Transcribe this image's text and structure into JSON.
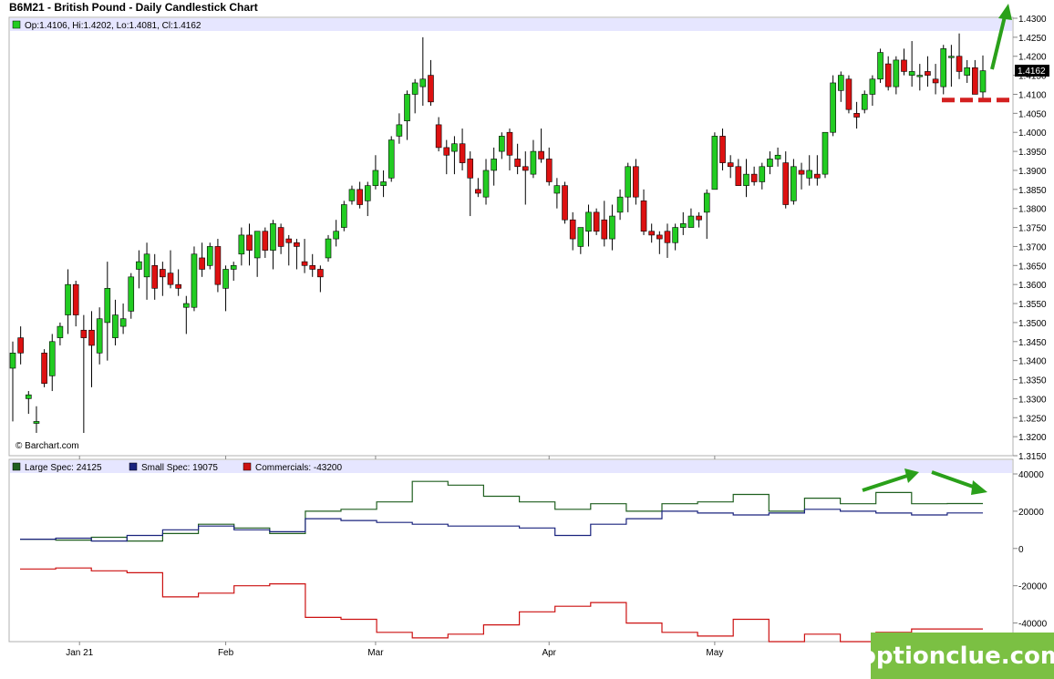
{
  "title": "B6M21 - British Pound - Daily Candlestick Chart",
  "ohlc_legend": "Op:1.4106, Hi:1.4202, Lo:1.4081, Cl:1.4162",
  "last_price_label": "1.4162",
  "watermark": "© Barchart.com",
  "brand": "optionclue.com",
  "x_labels": [
    "Jan 21",
    "Feb",
    "Mar",
    "Apr",
    "May"
  ],
  "colors": {
    "up": "#22cc22",
    "down": "#dd1111",
    "large": "#1f5f1f",
    "small": "#1a237e",
    "commercials": "#cc1111",
    "arrow": "#2aa01a",
    "support": "#d42020"
  },
  "chart_data": [
    {
      "type": "candlestick",
      "title": "B6M21 - British Pound - Daily Candlestick Chart",
      "ylim": [
        1.315,
        1.43
      ],
      "yticks": [
        "1.3150",
        "1.3200",
        "1.3250",
        "1.3300",
        "1.3350",
        "1.3400",
        "1.3450",
        "1.3500",
        "1.3550",
        "1.3600",
        "1.3650",
        "1.3700",
        "1.3750",
        "1.3800",
        "1.3850",
        "1.3900",
        "1.3950",
        "1.4000",
        "1.4050",
        "1.4100",
        "1.4150",
        "1.4200",
        "1.4250",
        "1.4300"
      ],
      "support_level": 1.4085,
      "candles": [
        {
          "o": 1.338,
          "h": 1.345,
          "l": 1.324,
          "c": 1.342
        },
        {
          "o": 1.346,
          "h": 1.349,
          "l": 1.339,
          "c": 1.342
        },
        {
          "o": 1.33,
          "h": 1.332,
          "l": 1.326,
          "c": 1.331
        },
        {
          "o": 1.3235,
          "h": 1.328,
          "l": 1.321,
          "c": 1.324
        },
        {
          "o": 1.342,
          "h": 1.343,
          "l": 1.333,
          "c": 1.334
        },
        {
          "o": 1.336,
          "h": 1.347,
          "l": 1.332,
          "c": 1.345
        },
        {
          "o": 1.346,
          "h": 1.35,
          "l": 1.344,
          "c": 1.349
        },
        {
          "o": 1.352,
          "h": 1.364,
          "l": 1.347,
          "c": 1.36
        },
        {
          "o": 1.36,
          "h": 1.361,
          "l": 1.349,
          "c": 1.352
        },
        {
          "o": 1.348,
          "h": 1.352,
          "l": 1.321,
          "c": 1.346
        },
        {
          "o": 1.348,
          "h": 1.353,
          "l": 1.333,
          "c": 1.344
        },
        {
          "o": 1.342,
          "h": 1.354,
          "l": 1.339,
          "c": 1.351
        },
        {
          "o": 1.35,
          "h": 1.366,
          "l": 1.34,
          "c": 1.359
        },
        {
          "o": 1.346,
          "h": 1.356,
          "l": 1.344,
          "c": 1.352
        },
        {
          "o": 1.349,
          "h": 1.355,
          "l": 1.347,
          "c": 1.351
        },
        {
          "o": 1.353,
          "h": 1.363,
          "l": 1.351,
          "c": 1.362
        },
        {
          "o": 1.364,
          "h": 1.369,
          "l": 1.359,
          "c": 1.366
        },
        {
          "o": 1.362,
          "h": 1.371,
          "l": 1.356,
          "c": 1.368
        },
        {
          "o": 1.365,
          "h": 1.368,
          "l": 1.356,
          "c": 1.359
        },
        {
          "o": 1.364,
          "h": 1.366,
          "l": 1.357,
          "c": 1.362
        },
        {
          "o": 1.363,
          "h": 1.369,
          "l": 1.359,
          "c": 1.36
        },
        {
          "o": 1.36,
          "h": 1.364,
          "l": 1.357,
          "c": 1.359
        },
        {
          "o": 1.354,
          "h": 1.357,
          "l": 1.347,
          "c": 1.355
        },
        {
          "o": 1.354,
          "h": 1.37,
          "l": 1.353,
          "c": 1.368
        },
        {
          "o": 1.367,
          "h": 1.371,
          "l": 1.362,
          "c": 1.364
        },
        {
          "o": 1.365,
          "h": 1.371,
          "l": 1.364,
          "c": 1.37
        },
        {
          "o": 1.37,
          "h": 1.372,
          "l": 1.358,
          "c": 1.36
        },
        {
          "o": 1.359,
          "h": 1.365,
          "l": 1.353,
          "c": 1.364
        },
        {
          "o": 1.364,
          "h": 1.366,
          "l": 1.361,
          "c": 1.365
        },
        {
          "o": 1.368,
          "h": 1.375,
          "l": 1.365,
          "c": 1.373
        },
        {
          "o": 1.373,
          "h": 1.376,
          "l": 1.365,
          "c": 1.369
        },
        {
          "o": 1.367,
          "h": 1.374,
          "l": 1.362,
          "c": 1.374
        },
        {
          "o": 1.374,
          "h": 1.375,
          "l": 1.367,
          "c": 1.369
        },
        {
          "o": 1.369,
          "h": 1.377,
          "l": 1.364,
          "c": 1.376
        },
        {
          "o": 1.375,
          "h": 1.376,
          "l": 1.368,
          "c": 1.37
        },
        {
          "o": 1.372,
          "h": 1.373,
          "l": 1.365,
          "c": 1.371
        },
        {
          "o": 1.371,
          "h": 1.372,
          "l": 1.364,
          "c": 1.37
        },
        {
          "o": 1.366,
          "h": 1.372,
          "l": 1.363,
          "c": 1.365
        },
        {
          "o": 1.365,
          "h": 1.368,
          "l": 1.362,
          "c": 1.364
        },
        {
          "o": 1.364,
          "h": 1.365,
          "l": 1.358,
          "c": 1.362
        },
        {
          "o": 1.367,
          "h": 1.373,
          "l": 1.366,
          "c": 1.372
        },
        {
          "o": 1.372,
          "h": 1.377,
          "l": 1.37,
          "c": 1.374
        },
        {
          "o": 1.375,
          "h": 1.382,
          "l": 1.374,
          "c": 1.381
        },
        {
          "o": 1.382,
          "h": 1.386,
          "l": 1.381,
          "c": 1.385
        },
        {
          "o": 1.385,
          "h": 1.387,
          "l": 1.38,
          "c": 1.381
        },
        {
          "o": 1.382,
          "h": 1.387,
          "l": 1.378,
          "c": 1.386
        },
        {
          "o": 1.386,
          "h": 1.394,
          "l": 1.385,
          "c": 1.39
        },
        {
          "o": 1.386,
          "h": 1.39,
          "l": 1.383,
          "c": 1.387
        },
        {
          "o": 1.388,
          "h": 1.399,
          "l": 1.387,
          "c": 1.398
        },
        {
          "o": 1.399,
          "h": 1.405,
          "l": 1.397,
          "c": 1.402
        },
        {
          "o": 1.403,
          "h": 1.411,
          "l": 1.398,
          "c": 1.41
        },
        {
          "o": 1.41,
          "h": 1.414,
          "l": 1.405,
          "c": 1.413
        },
        {
          "o": 1.412,
          "h": 1.425,
          "l": 1.407,
          "c": 1.414
        },
        {
          "o": 1.415,
          "h": 1.419,
          "l": 1.407,
          "c": 1.408
        },
        {
          "o": 1.402,
          "h": 1.404,
          "l": 1.395,
          "c": 1.396
        },
        {
          "o": 1.396,
          "h": 1.398,
          "l": 1.389,
          "c": 1.394
        },
        {
          "o": 1.395,
          "h": 1.399,
          "l": 1.389,
          "c": 1.397
        },
        {
          "o": 1.397,
          "h": 1.401,
          "l": 1.39,
          "c": 1.392
        },
        {
          "o": 1.393,
          "h": 1.395,
          "l": 1.378,
          "c": 1.388
        },
        {
          "o": 1.385,
          "h": 1.388,
          "l": 1.383,
          "c": 1.384
        },
        {
          "o": 1.383,
          "h": 1.393,
          "l": 1.381,
          "c": 1.39
        },
        {
          "o": 1.39,
          "h": 1.396,
          "l": 1.386,
          "c": 1.393
        },
        {
          "o": 1.395,
          "h": 1.4,
          "l": 1.393,
          "c": 1.399
        },
        {
          "o": 1.4,
          "h": 1.401,
          "l": 1.39,
          "c": 1.394
        },
        {
          "o": 1.393,
          "h": 1.397,
          "l": 1.389,
          "c": 1.391
        },
        {
          "o": 1.391,
          "h": 1.395,
          "l": 1.381,
          "c": 1.39
        },
        {
          "o": 1.389,
          "h": 1.398,
          "l": 1.388,
          "c": 1.395
        },
        {
          "o": 1.395,
          "h": 1.401,
          "l": 1.392,
          "c": 1.393
        },
        {
          "o": 1.393,
          "h": 1.396,
          "l": 1.386,
          "c": 1.387
        },
        {
          "o": 1.384,
          "h": 1.388,
          "l": 1.38,
          "c": 1.386
        },
        {
          "o": 1.386,
          "h": 1.387,
          "l": 1.376,
          "c": 1.377
        },
        {
          "o": 1.377,
          "h": 1.379,
          "l": 1.369,
          "c": 1.372
        },
        {
          "o": 1.37,
          "h": 1.375,
          "l": 1.368,
          "c": 1.375
        },
        {
          "o": 1.374,
          "h": 1.381,
          "l": 1.37,
          "c": 1.379
        },
        {
          "o": 1.379,
          "h": 1.38,
          "l": 1.373,
          "c": 1.374
        },
        {
          "o": 1.377,
          "h": 1.382,
          "l": 1.37,
          "c": 1.372
        },
        {
          "o": 1.372,
          "h": 1.381,
          "l": 1.369,
          "c": 1.378
        },
        {
          "o": 1.379,
          "h": 1.385,
          "l": 1.377,
          "c": 1.383
        },
        {
          "o": 1.383,
          "h": 1.392,
          "l": 1.379,
          "c": 1.391
        },
        {
          "o": 1.391,
          "h": 1.393,
          "l": 1.381,
          "c": 1.383
        },
        {
          "o": 1.382,
          "h": 1.385,
          "l": 1.373,
          "c": 1.374
        },
        {
          "o": 1.374,
          "h": 1.376,
          "l": 1.371,
          "c": 1.373
        },
        {
          "o": 1.373,
          "h": 1.374,
          "l": 1.368,
          "c": 1.372
        },
        {
          "o": 1.374,
          "h": 1.376,
          "l": 1.367,
          "c": 1.371
        },
        {
          "o": 1.371,
          "h": 1.376,
          "l": 1.369,
          "c": 1.375
        },
        {
          "o": 1.375,
          "h": 1.379,
          "l": 1.373,
          "c": 1.376
        },
        {
          "o": 1.375,
          "h": 1.38,
          "l": 1.375,
          "c": 1.378
        },
        {
          "o": 1.378,
          "h": 1.379,
          "l": 1.375,
          "c": 1.377
        },
        {
          "o": 1.379,
          "h": 1.385,
          "l": 1.372,
          "c": 1.384
        },
        {
          "o": 1.385,
          "h": 1.4,
          "l": 1.385,
          "c": 1.399
        },
        {
          "o": 1.399,
          "h": 1.401,
          "l": 1.39,
          "c": 1.392
        },
        {
          "o": 1.392,
          "h": 1.394,
          "l": 1.388,
          "c": 1.391
        },
        {
          "o": 1.391,
          "h": 1.393,
          "l": 1.386,
          "c": 1.386
        },
        {
          "o": 1.386,
          "h": 1.393,
          "l": 1.383,
          "c": 1.389
        },
        {
          "o": 1.389,
          "h": 1.391,
          "l": 1.386,
          "c": 1.387
        },
        {
          "o": 1.387,
          "h": 1.392,
          "l": 1.385,
          "c": 1.391
        },
        {
          "o": 1.391,
          "h": 1.395,
          "l": 1.389,
          "c": 1.393
        },
        {
          "o": 1.393,
          "h": 1.396,
          "l": 1.391,
          "c": 1.394
        },
        {
          "o": 1.392,
          "h": 1.395,
          "l": 1.38,
          "c": 1.381
        },
        {
          "o": 1.382,
          "h": 1.393,
          "l": 1.381,
          "c": 1.391
        },
        {
          "o": 1.39,
          "h": 1.392,
          "l": 1.385,
          "c": 1.389
        },
        {
          "o": 1.388,
          "h": 1.394,
          "l": 1.386,
          "c": 1.39
        },
        {
          "o": 1.389,
          "h": 1.394,
          "l": 1.386,
          "c": 1.388
        },
        {
          "o": 1.389,
          "h": 1.4,
          "l": 1.388,
          "c": 1.4
        },
        {
          "o": 1.4,
          "h": 1.415,
          "l": 1.399,
          "c": 1.413
        },
        {
          "o": 1.411,
          "h": 1.416,
          "l": 1.408,
          "c": 1.415
        },
        {
          "o": 1.414,
          "h": 1.415,
          "l": 1.405,
          "c": 1.406
        },
        {
          "o": 1.405,
          "h": 1.408,
          "l": 1.401,
          "c": 1.404
        },
        {
          "o": 1.406,
          "h": 1.411,
          "l": 1.405,
          "c": 1.41
        },
        {
          "o": 1.41,
          "h": 1.415,
          "l": 1.407,
          "c": 1.414
        },
        {
          "o": 1.414,
          "h": 1.422,
          "l": 1.413,
          "c": 1.421
        },
        {
          "o": 1.418,
          "h": 1.42,
          "l": 1.411,
          "c": 1.412
        },
        {
          "o": 1.412,
          "h": 1.42,
          "l": 1.41,
          "c": 1.419
        },
        {
          "o": 1.419,
          "h": 1.422,
          "l": 1.415,
          "c": 1.416
        },
        {
          "o": 1.415,
          "h": 1.424,
          "l": 1.412,
          "c": 1.416
        },
        {
          "o": 1.415,
          "h": 1.418,
          "l": 1.411,
          "c": 1.415
        },
        {
          "o": 1.416,
          "h": 1.42,
          "l": 1.412,
          "c": 1.415
        },
        {
          "o": 1.414,
          "h": 1.418,
          "l": 1.41,
          "c": 1.413
        },
        {
          "o": 1.412,
          "h": 1.423,
          "l": 1.41,
          "c": 1.422
        },
        {
          "o": 1.42,
          "h": 1.423,
          "l": 1.412,
          "c": 1.42
        },
        {
          "o": 1.42,
          "h": 1.426,
          "l": 1.414,
          "c": 1.416
        },
        {
          "o": 1.415,
          "h": 1.419,
          "l": 1.413,
          "c": 1.417
        },
        {
          "o": 1.417,
          "h": 1.419,
          "l": 1.41,
          "c": 1.41
        },
        {
          "o": 1.4106,
          "h": 1.4202,
          "l": 1.4081,
          "c": 1.4162
        }
      ]
    },
    {
      "type": "line",
      "title": "COT",
      "ylim": [
        -50000,
        40000
      ],
      "yticks": [
        "40000",
        "20000",
        "0",
        "-20000",
        "-40000"
      ],
      "series": [
        {
          "name": "Large Spec: 24125",
          "values": [
            5000,
            4500,
            6000,
            4000,
            8000,
            13000,
            11000,
            8000,
            20000,
            21000,
            25000,
            36000,
            34000,
            28000,
            25000,
            21000,
            24000,
            20000,
            24000,
            25000,
            29000,
            20000,
            27000,
            24000,
            30000,
            24000,
            24125
          ]
        },
        {
          "name": "Small Spec: 19075",
          "values": [
            5000,
            5500,
            4000,
            7000,
            10000,
            12000,
            10000,
            9000,
            16000,
            15000,
            14000,
            13000,
            12000,
            12000,
            11000,
            7000,
            13000,
            16000,
            20000,
            19000,
            18000,
            19000,
            21000,
            20000,
            19000,
            18000,
            19075
          ]
        },
        {
          "name": "Commercials: -43200",
          "values": [
            -11000,
            -10500,
            -12000,
            -13000,
            -26000,
            -24000,
            -20000,
            -19000,
            -37000,
            -38000,
            -45000,
            -48000,
            -46000,
            -41000,
            -34000,
            -31000,
            -29000,
            -40000,
            -45000,
            -47000,
            -38000,
            -50000,
            -46000,
            -50000,
            -45000,
            -43200,
            -43200
          ]
        }
      ]
    }
  ]
}
